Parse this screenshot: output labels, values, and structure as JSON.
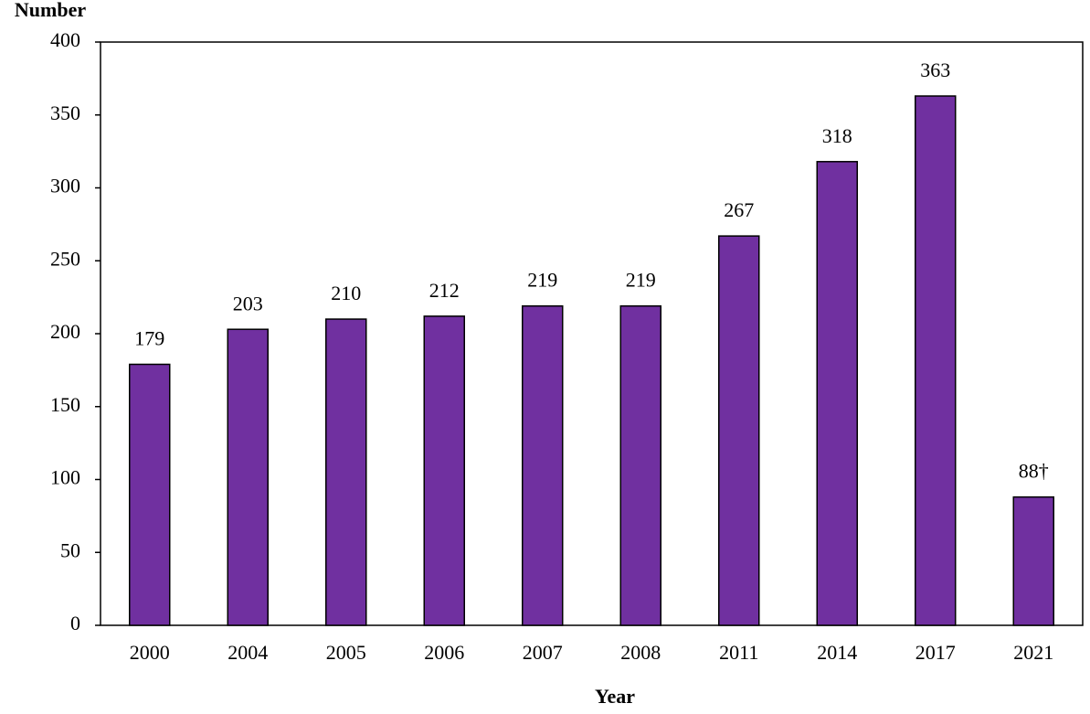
{
  "chart_data": {
    "type": "bar",
    "y_label": "Number",
    "x_label": "Year",
    "categories": [
      "2000",
      "2004",
      "2005",
      "2006",
      "2007",
      "2008",
      "2011",
      "2014",
      "2017",
      "2021"
    ],
    "values": [
      179,
      203,
      210,
      212,
      219,
      219,
      267,
      318,
      363,
      88
    ],
    "value_labels": [
      "179",
      "203",
      "210",
      "212",
      "219",
      "219",
      "267",
      "318",
      "363",
      "88†"
    ],
    "color": "#7030a0",
    "ylim": [
      0,
      400
    ],
    "yticks": [
      0,
      50,
      100,
      150,
      200,
      250,
      300,
      350,
      400
    ],
    "grid": false
  }
}
